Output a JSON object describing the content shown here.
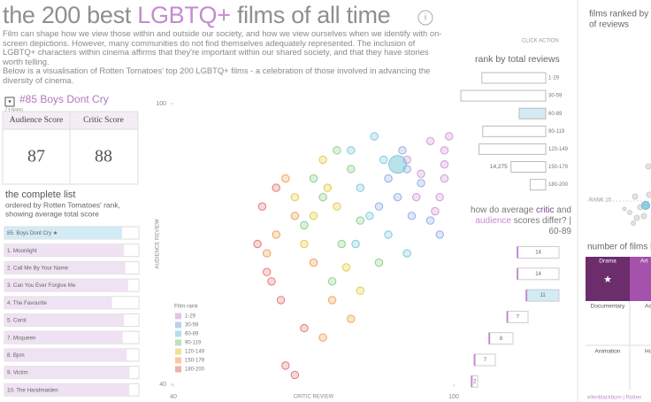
{
  "header": {
    "title_parts": [
      "the 200 best",
      "LGBTQ+",
      "films of all time"
    ],
    "info_icon": "i"
  },
  "intro": [
    "Film can shape how we view those within and outside our society, and how we view ourselves when we identify with on-screen depictions. However, many communities do not find themselves adequately represented. The inclusion of LGBTQ+ characters within cinema affirms that they're important within our shared society, and that they have stories worth telling.",
    "Below is a visualisation of Rotten Tomatoes' top 200 LGBTQ+ films - a celebration of those involved in advancing the diversity of cinema."
  ],
  "click_action": "CLICK ACTION",
  "selected_film": {
    "title": "#85 Boys Dont Cry",
    "year": "(1999)",
    "audience_label": "Audience Score",
    "critic_label": "Critic Score",
    "audience_score": 87,
    "critic_score": 88
  },
  "complete_list": {
    "title": "the complete list",
    "subtitle": [
      "ordered by Rotten Tomatoes' rank,",
      "showing average total score"
    ],
    "xlim": [
      0,
      100
    ],
    "items": [
      {
        "label": "85. Boys Dont Cry ★",
        "value": 87.5
      },
      {
        "label": "1. Moonlight",
        "value": 89
      },
      {
        "label": "2. Call Me By Your Name",
        "value": 90
      },
      {
        "label": "3. Can You Ever Forgive Me",
        "value": 92
      },
      {
        "label": "4. The Favourite",
        "value": 80
      },
      {
        "label": "5. Carol",
        "value": 89
      },
      {
        "label": "7. Mcqueen",
        "value": 88
      },
      {
        "label": "8. Bpm",
        "value": 91
      },
      {
        "label": "9. Victim",
        "value": 93
      },
      {
        "label": "10. The Handmaiden",
        "value": 93
      }
    ]
  },
  "chart_data": [
    {
      "type": "scatter",
      "x_label": "CRITIC REVIEW",
      "y_label": "AUDIENCE REVIEW",
      "xlim": [
        40,
        100
      ],
      "ylim": [
        40,
        100
      ],
      "xticks": [
        40,
        100
      ],
      "yticks": [
        40,
        100
      ],
      "legend_title": "Film rank",
      "series": [
        {
          "name": "1-29",
          "color": "#d49ad6",
          "x": [
            98,
            98,
            98,
            97,
            95,
            93,
            96,
            90,
            92,
            99
          ],
          "values": [
            87,
            84,
            90,
            80,
            92,
            85,
            77,
            88,
            80,
            93
          ]
        },
        {
          "name": "30-59",
          "color": "#94aee6",
          "x": [
            90,
            93,
            88,
            95,
            91,
            86,
            97,
            89,
            84
          ],
          "values": [
            86,
            83,
            80,
            75,
            76,
            84,
            72,
            90,
            78
          ]
        },
        {
          "name": "60-89",
          "color": "#7fcadb",
          "x": [
            88,
            85,
            80,
            82,
            86,
            78,
            83,
            79,
            90
          ],
          "values": [
            87,
            88,
            82,
            76,
            72,
            90,
            93,
            70,
            68
          ]
        },
        {
          "name": "90-119",
          "color": "#8fcf8f",
          "x": [
            75,
            78,
            72,
            80,
            76,
            70,
            84,
            74,
            68
          ],
          "values": [
            90,
            86,
            80,
            75,
            70,
            84,
            66,
            62,
            74
          ]
        },
        {
          "name": "120-149",
          "color": "#e3cc4a",
          "x": [
            73,
            75,
            70,
            68,
            77,
            72,
            66,
            80
          ],
          "values": [
            82,
            78,
            76,
            70,
            65,
            88,
            80,
            60
          ]
        },
        {
          "name": "150-179",
          "color": "#f0a55a",
          "x": [
            66,
            70,
            62,
            74,
            78,
            64,
            60,
            72
          ],
          "values": [
            76,
            66,
            72,
            58,
            54,
            84,
            68,
            50
          ]
        },
        {
          "name": "180-200",
          "color": "#e77a7a",
          "x": [
            62,
            58,
            60,
            63,
            64,
            68,
            61,
            59,
            66
          ],
          "values": [
            82,
            70,
            64,
            58,
            44,
            52,
            62,
            78,
            42
          ]
        }
      ]
    },
    {
      "type": "bar",
      "orientation": "horizontal",
      "title": "rank by total reviews",
      "xlim": [
        0,
        40000
      ],
      "categories": [
        "1-29",
        "30-59",
        "60-89",
        "90-119",
        "120-149",
        "150-179",
        "180-200"
      ],
      "values": [
        26250,
        34900,
        10900,
        25900,
        27400,
        14275,
        6400
      ],
      "value_labels": [
        null,
        null,
        null,
        null,
        null,
        "14,275",
        null
      ]
    },
    {
      "type": "bar",
      "orientation": "horizontal",
      "title_parts": [
        "how do average ",
        "critic",
        " and ",
        "audience",
        " scores differ? | ",
        "60-89"
      ],
      "xlim": [
        0,
        20
      ],
      "values": [
        14,
        14,
        11,
        7,
        8,
        7,
        2
      ]
    }
  ],
  "right_panel": {
    "title": [
      "films ranked by",
      "of reviews"
    ],
    "rank_label": "RANK 15",
    "subtitle": "number of films b",
    "cells": [
      {
        "label": "Drama",
        "symbol": "★"
      },
      {
        "label": "Art"
      },
      {
        "label": "Documentary"
      },
      {
        "label": "Ac"
      },
      {
        "label": "Animation"
      },
      {
        "label": "Ho"
      }
    ],
    "footer": "ellenblackburn | Rotten"
  }
}
